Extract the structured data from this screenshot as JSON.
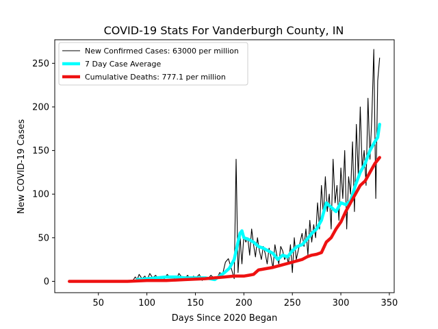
{
  "chart_data": {
    "type": "line",
    "title": "COVID-19 Stats For Vanderburgh County, IN",
    "xlabel": "Days Since 2020 Began",
    "ylabel": "New COVID-19 Cases",
    "xlim": [
      5,
      355
    ],
    "ylim": [
      -13,
      277
    ],
    "xticks": [
      50,
      100,
      150,
      200,
      250,
      300,
      350
    ],
    "yticks": [
      0,
      50,
      100,
      150,
      200,
      250
    ],
    "grid": false,
    "legend_position": "top-left",
    "series": [
      {
        "name": "New Confirmed Cases: 63000 per million",
        "color": "#000000",
        "style": "thin",
        "x": [
          85,
          88,
          90,
          92,
          95,
          98,
          100,
          103,
          106,
          109,
          112,
          115,
          118,
          121,
          124,
          127,
          130,
          133,
          136,
          139,
          142,
          145,
          148,
          151,
          154,
          157,
          160,
          163,
          166,
          169,
          172,
          175,
          178,
          181,
          184,
          187,
          190,
          192,
          194,
          195,
          196,
          197,
          198,
          200,
          202,
          204,
          206,
          208,
          210,
          212,
          214,
          216,
          218,
          220,
          222,
          224,
          226,
          228,
          230,
          232,
          234,
          236,
          238,
          240,
          242,
          244,
          246,
          248,
          250,
          252,
          254,
          256,
          258,
          260,
          262,
          264,
          266,
          268,
          270,
          272,
          274,
          276,
          278,
          280,
          282,
          284,
          286,
          288,
          290,
          292,
          294,
          296,
          298,
          300,
          302,
          304,
          306,
          308,
          310,
          312,
          314,
          316,
          318,
          320,
          322,
          324,
          326,
          328,
          330,
          332,
          334,
          336,
          338,
          340
        ],
        "y": [
          0,
          5,
          2,
          8,
          3,
          6,
          1,
          9,
          4,
          7,
          2,
          5,
          3,
          8,
          4,
          6,
          1,
          9,
          5,
          3,
          7,
          2,
          6,
          4,
          8,
          1,
          5,
          3,
          7,
          4,
          2,
          10,
          8,
          22,
          26,
          15,
          3,
          140,
          10,
          28,
          55,
          35,
          20,
          52,
          45,
          50,
          30,
          60,
          42,
          28,
          50,
          35,
          25,
          40,
          32,
          20,
          38,
          28,
          15,
          42,
          30,
          20,
          40,
          35,
          25,
          30,
          20,
          42,
          10,
          50,
          25,
          35,
          45,
          55,
          40,
          60,
          30,
          70,
          45,
          65,
          50,
          90,
          60,
          110,
          75,
          120,
          80,
          100,
          60,
          140,
          90,
          110,
          70,
          130,
          95,
          150,
          60,
          120,
          100,
          160,
          80,
          180,
          120,
          200,
          130,
          150,
          110,
          210,
          140,
          190,
          266,
          95,
          230,
          256
        ]
      },
      {
        "name": "7 Day Case Average",
        "color": "#00ffff",
        "style": "thick",
        "x": [
          90,
          100,
          110,
          120,
          130,
          140,
          150,
          160,
          165,
          170,
          175,
          180,
          185,
          190,
          193,
          196,
          198,
          200,
          205,
          210,
          215,
          220,
          225,
          230,
          235,
          240,
          245,
          250,
          255,
          260,
          265,
          270,
          275,
          280,
          285,
          290,
          295,
          300,
          305,
          310,
          315,
          320,
          325,
          330,
          335,
          338,
          340
        ],
        "y": [
          2,
          3,
          4,
          5,
          5,
          4,
          4,
          4,
          3,
          2,
          6,
          10,
          15,
          25,
          40,
          55,
          58,
          50,
          48,
          45,
          40,
          38,
          35,
          32,
          25,
          30,
          28,
          35,
          40,
          42,
          48,
          55,
          60,
          70,
          90,
          85,
          80,
          90,
          88,
          92,
          110,
          125,
          135,
          150,
          160,
          165,
          180
        ]
      },
      {
        "name": "Cumulative Deaths: 777.1 per million",
        "color": "#ee1111",
        "style": "thick",
        "x": [
          20,
          40,
          60,
          80,
          100,
          120,
          140,
          160,
          180,
          190,
          200,
          205,
          210,
          215,
          220,
          230,
          240,
          250,
          260,
          265,
          270,
          275,
          280,
          285,
          290,
          295,
          300,
          305,
          310,
          315,
          320,
          325,
          330,
          335,
          340
        ],
        "y": [
          0,
          0,
          0,
          0,
          1,
          1,
          2,
          3,
          5,
          6,
          6,
          7,
          8,
          13,
          14,
          16,
          19,
          22,
          25,
          28,
          30,
          31,
          33,
          45,
          50,
          60,
          68,
          80,
          90,
          100,
          110,
          115,
          125,
          135,
          142
        ]
      }
    ]
  }
}
